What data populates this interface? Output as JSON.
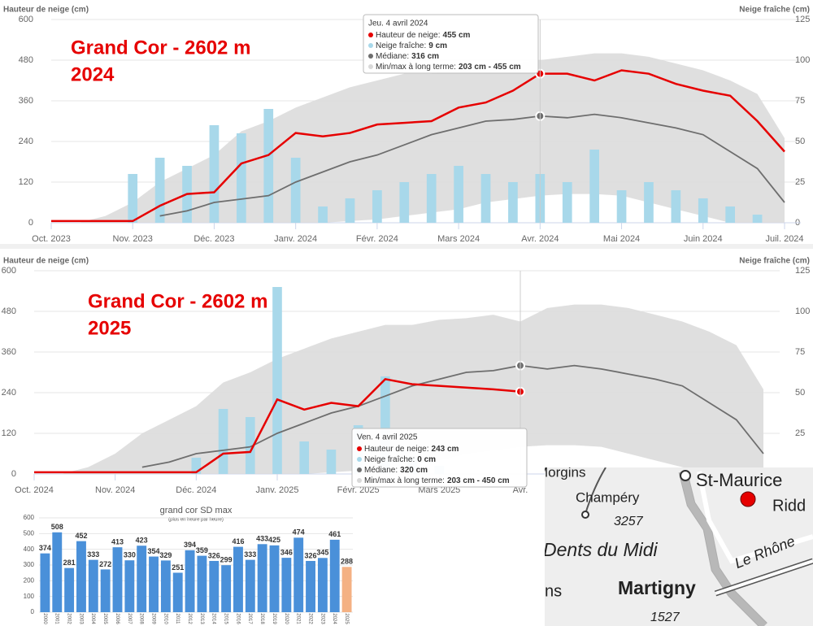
{
  "chart_data": [
    {
      "type": "line",
      "title": "Grand Cor - 2602 m",
      "subtitle": "2024",
      "ylabel": "Hauteur de neige (cm)",
      "y2label": "Neige fraîche (cm)",
      "categories": [
        "Oct. 2023",
        null,
        null,
        "Nov. 2023",
        null,
        null,
        "Déc. 2023",
        null,
        null,
        "Janv. 2024",
        null,
        null,
        "Févr. 2024",
        null,
        null,
        "Mars 2024",
        null,
        null,
        "Avr. 2024",
        null,
        null,
        "Mai 2024",
        null,
        null,
        "Juin 2024",
        null,
        null,
        "Juil. 2024"
      ],
      "ylim": [
        0,
        600
      ],
      "yticks": [
        0,
        120,
        240,
        360,
        480,
        600
      ],
      "y2lim": [
        0,
        125
      ],
      "y2ticks": [
        0,
        25,
        50,
        75,
        100,
        125
      ],
      "grid": true,
      "series": [
        {
          "name": "Min/max à long terme",
          "type": "range",
          "color": "#d9d9d9",
          "low": [
            0,
            0,
            0,
            0,
            0,
            0,
            0,
            0,
            0,
            0,
            0,
            5,
            10,
            20,
            30,
            40,
            60,
            70,
            80,
            85,
            85,
            80,
            60,
            40,
            20,
            0,
            0,
            0
          ],
          "high": [
            0,
            0,
            20,
            60,
            120,
            160,
            200,
            270,
            300,
            340,
            370,
            400,
            420,
            440,
            440,
            455,
            460,
            470,
            480,
            490,
            500,
            500,
            490,
            470,
            450,
            420,
            380,
            250
          ]
        },
        {
          "name": "Neige fraîche",
          "type": "bar",
          "axis": "y2",
          "color": "#a8d8ea",
          "values": [
            0,
            0,
            0,
            30,
            40,
            35,
            60,
            55,
            70,
            40,
            10,
            15,
            20,
            25,
            30,
            35,
            30,
            25,
            30,
            25,
            45,
            20,
            25,
            20,
            15,
            10,
            5,
            0
          ]
        },
        {
          "name": "Médiane",
          "type": "line",
          "color": "#6e6e6e",
          "values": [
            null,
            null,
            null,
            null,
            20,
            35,
            60,
            70,
            80,
            120,
            150,
            180,
            200,
            230,
            260,
            280,
            300,
            305,
            315,
            310,
            320,
            310,
            295,
            280,
            260,
            210,
            160,
            60
          ]
        },
        {
          "name": "Hauteur de neige",
          "type": "line",
          "color": "#e60000",
          "values": [
            5,
            5,
            5,
            5,
            50,
            85,
            90,
            175,
            200,
            265,
            255,
            265,
            290,
            295,
            300,
            340,
            355,
            390,
            440,
            440,
            420,
            450,
            440,
            410,
            390,
            375,
            300,
            210
          ]
        }
      ],
      "tooltip": {
        "date": "Jeu. 4 avril 2024",
        "rows": [
          {
            "label": "Hauteur de neige:",
            "value": "455 cm",
            "color": "#e60000"
          },
          {
            "label": "Neige fraîche:",
            "value": "9 cm",
            "color": "#a8d8ea"
          },
          {
            "label": "Médiane:",
            "value": "316 cm",
            "color": "#6e6e6e"
          },
          {
            "label": "Min/max à long terme:",
            "value": "203 cm - 455 cm",
            "color": "#d9d9d9"
          }
        ]
      }
    },
    {
      "type": "line",
      "title": "Grand Cor - 2602 m",
      "subtitle": "2025",
      "ylabel": "Hauteur de neige (cm)",
      "y2label": "Neige fraîche (cm)",
      "categories": [
        "Oct. 2024",
        null,
        null,
        "Nov. 2024",
        null,
        null,
        "Déc. 2024",
        null,
        null,
        "Janv. 2025",
        null,
        null,
        "Févr. 2025",
        null,
        null,
        "Mars 2025",
        null,
        null,
        "Avr.",
        null,
        null,
        null,
        null,
        null,
        null,
        null,
        null,
        null
      ],
      "ylim": [
        0,
        600
      ],
      "yticks": [
        0,
        120,
        240,
        360,
        480,
        600
      ],
      "y2lim": [
        0,
        125
      ],
      "y2ticks": [
        0,
        25,
        50,
        75,
        100,
        125
      ],
      "grid": true,
      "series": [
        {
          "name": "Min/max à long terme",
          "type": "range",
          "color": "#d9d9d9",
          "low": [
            0,
            0,
            0,
            0,
            0,
            0,
            0,
            0,
            0,
            0,
            0,
            5,
            10,
            20,
            30,
            40,
            60,
            70,
            80,
            85,
            85,
            80,
            60,
            40,
            20,
            0,
            0,
            0
          ],
          "high": [
            0,
            0,
            20,
            60,
            120,
            160,
            200,
            270,
            300,
            340,
            370,
            400,
            420,
            440,
            440,
            455,
            460,
            470,
            450,
            490,
            500,
            500,
            490,
            470,
            450,
            420,
            380,
            250
          ]
        },
        {
          "name": "Neige fraîche",
          "type": "bar",
          "axis": "y2",
          "color": "#a8d8ea",
          "values": [
            0,
            0,
            0,
            0,
            0,
            0,
            10,
            40,
            35,
            115,
            20,
            15,
            30,
            60,
            10,
            5,
            0,
            0,
            0,
            null,
            null,
            null,
            null,
            null,
            null,
            null,
            null,
            null
          ]
        },
        {
          "name": "Médiane",
          "type": "line",
          "color": "#6e6e6e",
          "values": [
            null,
            null,
            null,
            null,
            20,
            35,
            60,
            70,
            80,
            120,
            150,
            180,
            200,
            230,
            260,
            280,
            300,
            305,
            320,
            310,
            320,
            310,
            295,
            280,
            260,
            210,
            160,
            60
          ]
        },
        {
          "name": "Hauteur de neige",
          "type": "line",
          "color": "#e60000",
          "values": [
            5,
            5,
            5,
            5,
            5,
            5,
            5,
            60,
            65,
            220,
            190,
            210,
            200,
            280,
            265,
            260,
            255,
            250,
            243,
            null,
            null,
            null,
            null,
            null,
            null,
            null,
            null,
            null
          ]
        }
      ],
      "tooltip": {
        "date": "Ven. 4 avril 2025",
        "rows": [
          {
            "label": "Hauteur de neige:",
            "value": "243 cm",
            "color": "#e60000"
          },
          {
            "label": "Neige fraîche:",
            "value": "0 cm",
            "color": "#a8d8ea"
          },
          {
            "label": "Médiane:",
            "value": "320 cm",
            "color": "#6e6e6e"
          },
          {
            "label": "Min/max à long terme:",
            "value": "203 cm - 450 cm",
            "color": "#d9d9d9"
          }
        ]
      }
    },
    {
      "type": "bar",
      "title": "grand cor SD max",
      "subtitle": "(plus en heure par heure)",
      "categories": [
        "2000",
        "2001",
        "2002",
        "2003",
        "2004",
        "2005",
        "2006",
        "2007",
        "2008",
        "2009",
        "2010",
        "2011",
        "2012",
        "2013",
        "2014",
        "2015",
        "2016",
        "2017",
        "2018",
        "2019",
        "2020",
        "2021",
        "2022",
        "2023",
        "2024",
        "2025"
      ],
      "values": [
        374,
        508,
        281,
        452,
        333,
        272,
        413,
        330,
        423,
        354,
        329,
        251,
        394,
        359,
        326,
        299,
        416,
        333,
        433,
        425,
        346,
        474,
        326,
        345,
        461,
        288
      ],
      "colors": [
        "#4a90d9",
        "#4a90d9",
        "#4a90d9",
        "#4a90d9",
        "#4a90d9",
        "#4a90d9",
        "#4a90d9",
        "#4a90d9",
        "#4a90d9",
        "#4a90d9",
        "#4a90d9",
        "#4a90d9",
        "#4a90d9",
        "#4a90d9",
        "#4a90d9",
        "#4a90d9",
        "#4a90d9",
        "#4a90d9",
        "#4a90d9",
        "#4a90d9",
        "#4a90d9",
        "#4a90d9",
        "#4a90d9",
        "#4a90d9",
        "#4a90d9",
        "#f4b183"
      ],
      "ylim": [
        0,
        600
      ],
      "yticks": [
        0,
        100,
        200,
        300,
        400,
        500,
        600
      ],
      "grid": true
    }
  ],
  "map": {
    "labels": [
      "Morgins",
      "Champéry",
      "3257",
      "Dents du Midi",
      "St-Maurice",
      "Ridd",
      "Le Rhône",
      "Martigny",
      "1527",
      "ns"
    ]
  }
}
